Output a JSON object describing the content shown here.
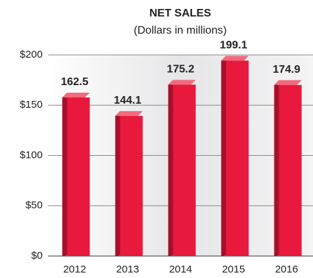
{
  "chart_data": {
    "type": "bar",
    "title": "NET SALES",
    "subtitle": "(Dollars in millions)",
    "categories": [
      "2012",
      "2013",
      "2014",
      "2015",
      "2016"
    ],
    "values": [
      162.5,
      144.1,
      175.2,
      199.1,
      174.9
    ],
    "color": "#e8193c",
    "ylim": [
      0,
      200
    ],
    "yticks": [
      {
        "value": 0,
        "label": "$0"
      },
      {
        "value": 50,
        "label": "$50"
      },
      {
        "value": 100,
        "label": "$100"
      },
      {
        "value": 150,
        "label": "$150"
      },
      {
        "value": 200,
        "label": "$200"
      }
    ],
    "grid": true
  }
}
